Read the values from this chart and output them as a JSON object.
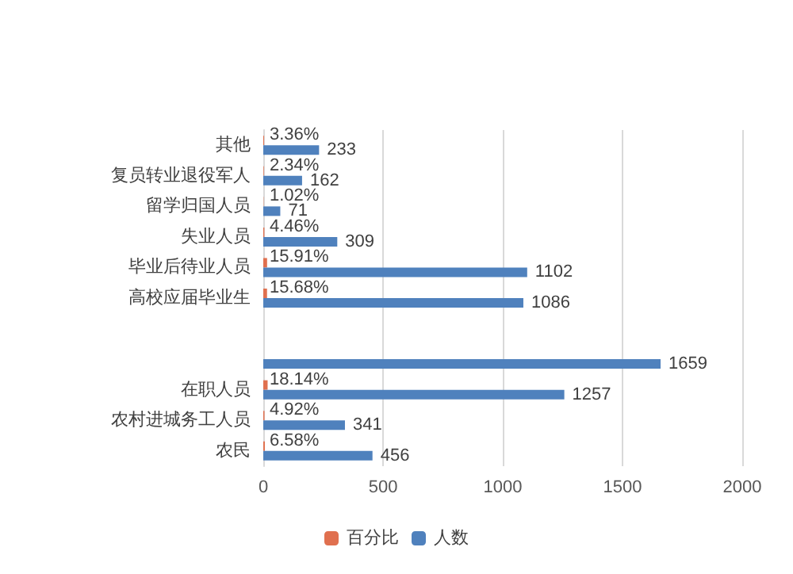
{
  "chart_data": {
    "type": "bar",
    "orientation": "horizontal",
    "categories": [
      "其他",
      "复员转业退役军人",
      "留学归国人员",
      "失业人员",
      "毕业后待业人员",
      "高校应届毕业生",
      null,
      null,
      "在职人员",
      "农村进城务工人员",
      "农民"
    ],
    "series": [
      {
        "name": "百分比",
        "color": "#e0704f",
        "values": [
          3.36,
          2.34,
          1.02,
          4.46,
          15.91,
          15.68,
          null,
          null,
          18.14,
          4.92,
          6.58
        ],
        "value_labels": [
          "3.36%",
          "2.34%",
          "1.02%",
          "4.46%",
          "15.91%",
          "15.68%",
          null,
          null,
          "18.14%",
          "4.92%",
          "6.58%"
        ]
      },
      {
        "name": "人数",
        "color": "#4f81bd",
        "values": [
          233,
          162,
          71,
          309,
          1102,
          1086,
          null,
          1659,
          1257,
          341,
          456
        ],
        "value_labels": [
          "233",
          "162",
          "71",
          "309",
          "1102",
          "1086",
          null,
          "1659",
          "1257",
          "341",
          "456"
        ]
      }
    ],
    "xlim": [
      0,
      2000
    ],
    "xticks": [
      0,
      500,
      1000,
      1500,
      2000
    ],
    "grid": "x",
    "legend": "bottom"
  }
}
